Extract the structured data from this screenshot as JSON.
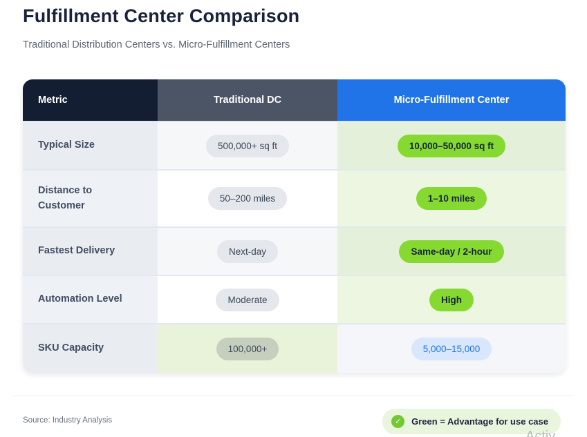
{
  "page": {
    "title": "Fulfillment Center Comparison",
    "subtitle": "Traditional Distribution Centers vs. Micro-Fulfillment Centers",
    "source": "Source: Industry Analysis",
    "legend": {
      "icon": "check-icon",
      "check_glyph": "✓",
      "label": "Green = Advantage for use case"
    },
    "watermark": "Activ"
  },
  "colors": {
    "header_metric_bg": "#141e33",
    "header_traditional_bg": "#4c5565",
    "header_micro_bg": "#2174e8",
    "advantage_green_pill": "#85d930",
    "advantage_green_cell": "#e4f0d9",
    "neutral_gray_pill": "#e4e7eb",
    "blue_pill_bg": "#d8e7fb",
    "blue_pill_text": "#2273e2",
    "legend_bg": "#e9f5dc",
    "legend_check_circle": "#71ca30",
    "title_text": "#182339"
  },
  "table": {
    "headers": [
      {
        "label": "Metric"
      },
      {
        "label": "Traditional DC"
      },
      {
        "label": "Micro-Fulfillment Center"
      }
    ],
    "rows": [
      {
        "metric": "Typical Size",
        "traditional": {
          "value": "500,000+ sq ft",
          "style": "gray"
        },
        "micro": {
          "value": "10,000–50,000 sq ft",
          "style": "green"
        },
        "advantage": "micro"
      },
      {
        "metric": "Distance to Customer",
        "traditional": {
          "value": "50–200 miles",
          "style": "gray"
        },
        "micro": {
          "value": "1–10 miles",
          "style": "green"
        },
        "advantage": "micro"
      },
      {
        "metric": "Fastest Delivery",
        "traditional": {
          "value": "Next-day",
          "style": "gray"
        },
        "micro": {
          "value": "Same-day / 2-hour",
          "style": "green"
        },
        "advantage": "micro"
      },
      {
        "metric": "Automation Level",
        "traditional": {
          "value": "Moderate",
          "style": "gray"
        },
        "micro": {
          "value": "High",
          "style": "green"
        },
        "advantage": "micro"
      },
      {
        "metric": "SKU Capacity",
        "traditional": {
          "value": "100,000+",
          "style": "graygreen"
        },
        "micro": {
          "value": "5,000–15,000",
          "style": "blue"
        },
        "advantage": "traditional"
      }
    ]
  },
  "chart_data": {
    "type": "table",
    "title": "Fulfillment Center Comparison",
    "subtitle": "Traditional Distribution Centers vs. Micro-Fulfillment Centers",
    "columns": [
      "Metric",
      "Traditional DC",
      "Micro-Fulfillment Center"
    ],
    "rows": [
      [
        "Typical Size",
        "500,000+ sq ft",
        "10,000–50,000 sq ft"
      ],
      [
        "Distance to Customer",
        "50–200 miles",
        "1–10 miles"
      ],
      [
        "Fastest Delivery",
        "Next-day",
        "Same-day / 2-hour"
      ],
      [
        "Automation Level",
        "Moderate",
        "High"
      ],
      [
        "SKU Capacity",
        "100,000+",
        "5,000–15,000"
      ]
    ],
    "advantage_per_row": [
      "micro",
      "micro",
      "micro",
      "micro",
      "traditional"
    ],
    "legend": "Green = Advantage for use case",
    "source": "Source: Industry Analysis"
  }
}
